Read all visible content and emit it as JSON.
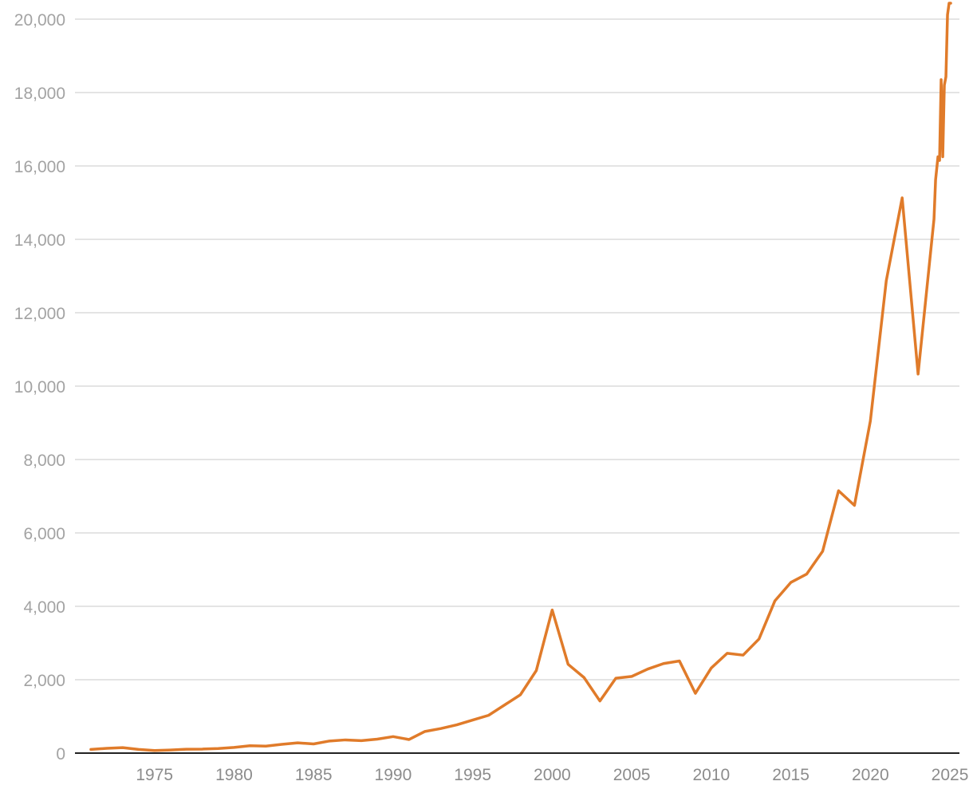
{
  "chart_data": {
    "type": "line",
    "title": "",
    "xlabel": "",
    "ylabel": "",
    "xlim": [
      1970,
      2025.6
    ],
    "ylim": [
      0,
      20000
    ],
    "grid": true,
    "legend": "none",
    "x_ticks": [
      1975,
      1980,
      1985,
      1990,
      1995,
      2000,
      2005,
      2010,
      2015,
      2020,
      2025
    ],
    "x_tick_labels": [
      "1975",
      "1980",
      "1985",
      "1990",
      "1995",
      "2000",
      "2005",
      "2010",
      "2015",
      "2020",
      "2025"
    ],
    "y_ticks": [
      0,
      2000,
      4000,
      6000,
      8000,
      10000,
      12000,
      14000,
      16000,
      18000,
      20000
    ],
    "y_tick_labels": [
      "0",
      "2,000",
      "4,000",
      "6,000",
      "8,000",
      "10,000",
      "12,000",
      "14,000",
      "16,000",
      "18,000",
      "20,000"
    ],
    "colors": {
      "line": "#e07b2a",
      "grid": "#dcdcdc",
      "axis": "#222222",
      "y_tick_text": "#a3a3a3",
      "x_tick_text": "#8c8c8c"
    },
    "series": [
      {
        "x": [
          1971,
          1972,
          1973,
          1974,
          1975,
          1976,
          1977,
          1978,
          1979,
          1980,
          1981,
          1982,
          1983,
          1984,
          1985,
          1986,
          1987,
          1988,
          1989,
          1990,
          1991,
          1992,
          1993,
          1994,
          1995,
          1996,
          1997,
          1998,
          1999,
          2000,
          2001,
          2002,
          2003,
          2004,
          2005,
          2006,
          2007,
          2008,
          2009,
          2010,
          2011,
          2012,
          2013,
          2014,
          2015,
          2016,
          2017,
          2018,
          2019,
          2020,
          2021,
          2022,
          2023,
          2024,
          2024.1,
          2024.25,
          2024.35,
          2024.45,
          2024.55,
          2024.65,
          2024.75,
          2024.85,
          2024.95,
          2025.05
        ],
        "values": [
          100,
          130,
          150,
          100,
          70,
          85,
          105,
          110,
          125,
          155,
          200,
          190,
          240,
          280,
          250,
          330,
          360,
          340,
          380,
          450,
          370,
          590,
          670,
          770,
          900,
          1030,
          1310,
          1590,
          2250,
          3900,
          2420,
          2060,
          1420,
          2040,
          2090,
          2290,
          2440,
          2510,
          1630,
          2320,
          2720,
          2670,
          3110,
          4150,
          4650,
          4880,
          5500,
          7150,
          6750,
          9050,
          12870,
          15130,
          10330,
          14550,
          15620,
          16250,
          16150,
          18350,
          16250,
          18200,
          18430,
          20120,
          20730,
          20930
        ]
      }
    ]
  }
}
